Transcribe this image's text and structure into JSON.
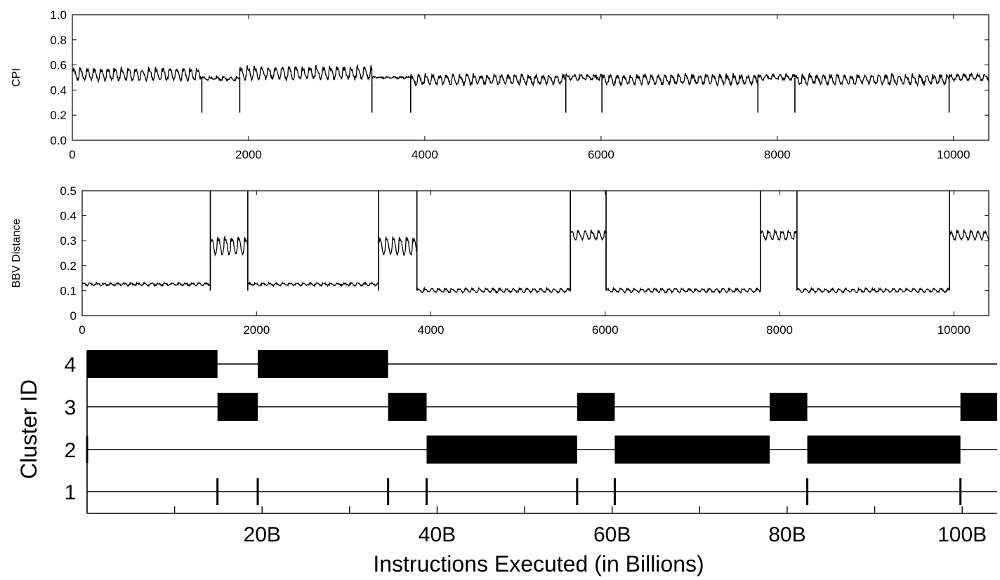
{
  "chart_data": [
    {
      "id": "cpi",
      "type": "line",
      "ylabel": "CPI",
      "xlim": [
        0,
        10400
      ],
      "ylim": [
        0,
        1.0
      ],
      "xticks": [
        0,
        2000,
        4000,
        6000,
        8000,
        10000
      ],
      "xtick_labels": [
        "0",
        "2000",
        "4000",
        "6000",
        "8000",
        "10000"
      ],
      "yticks": [
        0,
        0.2,
        0.4,
        0.6,
        0.8,
        1.0
      ],
      "ytick_labels": [
        "0.0",
        "0.2",
        "0.4",
        "0.6",
        "0.8",
        "1.0"
      ],
      "grid": false,
      "segments": [
        {
          "x_start": 0,
          "x_end": 1470,
          "mean": 0.52,
          "ripple": 0.04,
          "noise": 0.015
        },
        {
          "x_start": 1470,
          "x_end": 1900,
          "mean": 0.49,
          "ripple": 0.01,
          "noise": 0.008
        },
        {
          "x_start": 1900,
          "x_end": 3400,
          "mean": 0.53,
          "ripple": 0.04,
          "noise": 0.015
        },
        {
          "x_start": 3400,
          "x_end": 3840,
          "mean": 0.5,
          "ripple": 0.005,
          "noise": 0.006
        },
        {
          "x_start": 3840,
          "x_end": 5600,
          "mean": 0.48,
          "ripple": 0.03,
          "noise": 0.015
        },
        {
          "x_start": 5600,
          "x_end": 6010,
          "mean": 0.5,
          "ripple": 0.015,
          "noise": 0.01
        },
        {
          "x_start": 6010,
          "x_end": 7780,
          "mean": 0.48,
          "ripple": 0.03,
          "noise": 0.015
        },
        {
          "x_start": 7780,
          "x_end": 8200,
          "mean": 0.5,
          "ripple": 0.015,
          "noise": 0.01
        },
        {
          "x_start": 8200,
          "x_end": 9950,
          "mean": 0.48,
          "ripple": 0.03,
          "noise": 0.015
        },
        {
          "x_start": 9950,
          "x_end": 10400,
          "mean": 0.5,
          "ripple": 0.02,
          "noise": 0.012
        }
      ],
      "dips": [
        {
          "x": 1470,
          "y": 0.22
        },
        {
          "x": 1900,
          "y": 0.22
        },
        {
          "x": 3400,
          "y": 0.22
        },
        {
          "x": 3840,
          "y": 0.22
        },
        {
          "x": 5600,
          "y": 0.22
        },
        {
          "x": 6010,
          "y": 0.22
        },
        {
          "x": 7780,
          "y": 0.22
        },
        {
          "x": 8200,
          "y": 0.22
        },
        {
          "x": 9950,
          "y": 0.22
        }
      ]
    },
    {
      "id": "bbv",
      "type": "line",
      "ylabel": "BBV Distance",
      "xlim": [
        0,
        10400
      ],
      "ylim": [
        0,
        0.5
      ],
      "xticks": [
        0,
        2000,
        4000,
        6000,
        8000,
        10000
      ],
      "xtick_labels": [
        "0",
        "2000",
        "4000",
        "6000",
        "8000",
        "10000"
      ],
      "yticks": [
        0,
        0.1,
        0.2,
        0.3,
        0.4,
        0.5
      ],
      "ytick_labels": [
        "0",
        "0.1",
        "0.2",
        "0.3",
        "0.4",
        "0.5"
      ],
      "grid": false,
      "segments": [
        {
          "x_start": 0,
          "x_end": 1470,
          "mean": 0.125,
          "ripple": 0.004,
          "noise": 0.003
        },
        {
          "x_start": 1470,
          "x_end": 1900,
          "mean": 0.275,
          "ripple": 0.03,
          "noise": 0.004
        },
        {
          "x_start": 1900,
          "x_end": 3400,
          "mean": 0.125,
          "ripple": 0.004,
          "noise": 0.003
        },
        {
          "x_start": 3400,
          "x_end": 3840,
          "mean": 0.275,
          "ripple": 0.03,
          "noise": 0.004
        },
        {
          "x_start": 3840,
          "x_end": 5600,
          "mean": 0.1,
          "ripple": 0.006,
          "noise": 0.003
        },
        {
          "x_start": 5600,
          "x_end": 6010,
          "mean": 0.32,
          "ripple": 0.015,
          "noise": 0.004
        },
        {
          "x_start": 6010,
          "x_end": 7780,
          "mean": 0.1,
          "ripple": 0.006,
          "noise": 0.003
        },
        {
          "x_start": 7780,
          "x_end": 8200,
          "mean": 0.32,
          "ripple": 0.015,
          "noise": 0.004
        },
        {
          "x_start": 8200,
          "x_end": 9950,
          "mean": 0.1,
          "ripple": 0.006,
          "noise": 0.003
        },
        {
          "x_start": 9950,
          "x_end": 10400,
          "mean": 0.32,
          "ripple": 0.015,
          "noise": 0.004
        }
      ],
      "spikes": [
        {
          "x": 1470,
          "y": 0.5
        },
        {
          "x": 1900,
          "y": 0.5
        },
        {
          "x": 3400,
          "y": 0.5
        },
        {
          "x": 3840,
          "y": 0.5
        },
        {
          "x": 5600,
          "y": 0.5
        },
        {
          "x": 6010,
          "y": 0.5
        },
        {
          "x": 7780,
          "y": 0.5
        },
        {
          "x": 8200,
          "y": 0.5
        },
        {
          "x": 9950,
          "y": 0.5
        }
      ]
    },
    {
      "id": "clusters",
      "type": "timeline",
      "xlabel": "Instructions Executed (in Billions)",
      "ylabel": "Cluster ID",
      "xlim": [
        0,
        104
      ],
      "rows": [
        "1",
        "2",
        "3",
        "4"
      ],
      "xticks": [
        10,
        20,
        30,
        40,
        50,
        60,
        70,
        80,
        90,
        100
      ],
      "xtick_labels": [
        {
          "x": 20,
          "label": "20B"
        },
        {
          "x": 40,
          "label": "40B"
        },
        {
          "x": 60,
          "label": "60B"
        },
        {
          "x": 80,
          "label": "80B"
        },
        {
          "x": 100,
          "label": "100B"
        }
      ],
      "blocks": [
        {
          "cluster": "4",
          "start": 0,
          "end": 14.9
        },
        {
          "cluster": "4",
          "start": 19.5,
          "end": 34.4
        },
        {
          "cluster": "3",
          "start": 14.9,
          "end": 19.5
        },
        {
          "cluster": "3",
          "start": 34.4,
          "end": 38.8
        },
        {
          "cluster": "3",
          "start": 56.0,
          "end": 60.3
        },
        {
          "cluster": "3",
          "start": 78.0,
          "end": 82.3
        },
        {
          "cluster": "3",
          "start": 99.8,
          "end": 104.0
        },
        {
          "cluster": "2",
          "start": 38.8,
          "end": 56.0
        },
        {
          "cluster": "2",
          "start": 60.3,
          "end": 78.0
        },
        {
          "cluster": "2",
          "start": 82.3,
          "end": 99.8
        }
      ],
      "markers": [
        {
          "cluster": "2",
          "x": 0
        },
        {
          "cluster": "1",
          "x": 14.9
        },
        {
          "cluster": "1",
          "x": 19.5
        },
        {
          "cluster": "1",
          "x": 34.4
        },
        {
          "cluster": "1",
          "x": 38.8
        },
        {
          "cluster": "1",
          "x": 56.0
        },
        {
          "cluster": "1",
          "x": 60.3
        },
        {
          "cluster": "1",
          "x": 82.3
        },
        {
          "cluster": "1",
          "x": 99.8
        }
      ]
    }
  ]
}
